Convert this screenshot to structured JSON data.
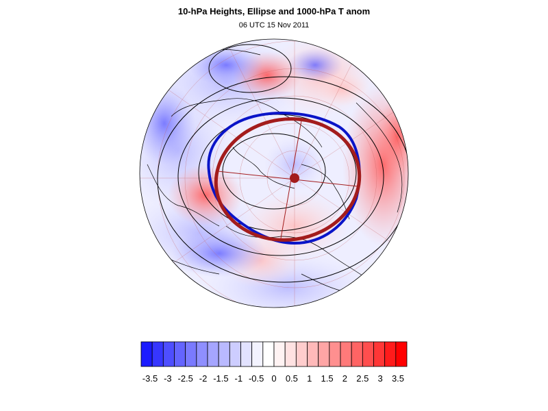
{
  "title": "10-hPa Heights, Ellipse and 1000-hPa T anom",
  "subtitle": "06 UTC 15 Nov 2011",
  "colorbar": {
    "colors": [
      "#1b1bff",
      "#3636ff",
      "#4e4eff",
      "#6464ff",
      "#7a7aff",
      "#8f8fff",
      "#a5a5ff",
      "#b9b9ff",
      "#cdcdff",
      "#e2e2ff",
      "#f3f3ff",
      "#ffffff",
      "#fff3f3",
      "#ffe2e2",
      "#ffcdcd",
      "#ffb9b9",
      "#ffa5a5",
      "#ff8f8f",
      "#ff7a7a",
      "#ff6464",
      "#ff4e4e",
      "#ff3636",
      "#ff1b1b",
      "#ff0000"
    ],
    "tick_labels": [
      "-3.5",
      "-3",
      "-2.5",
      "-2",
      "-1.5",
      "-1",
      "-0.5",
      "0",
      "0.5",
      "1",
      "1.5",
      "2",
      "2.5",
      "3",
      "3.5"
    ]
  },
  "map": {
    "projection": "north polar stereographic",
    "ellipse_color": "#a31c1c",
    "polar_vortex_edge_color": "#0a14c8",
    "height_contour_color": "#000000",
    "coastline_color": "#000000"
  }
}
